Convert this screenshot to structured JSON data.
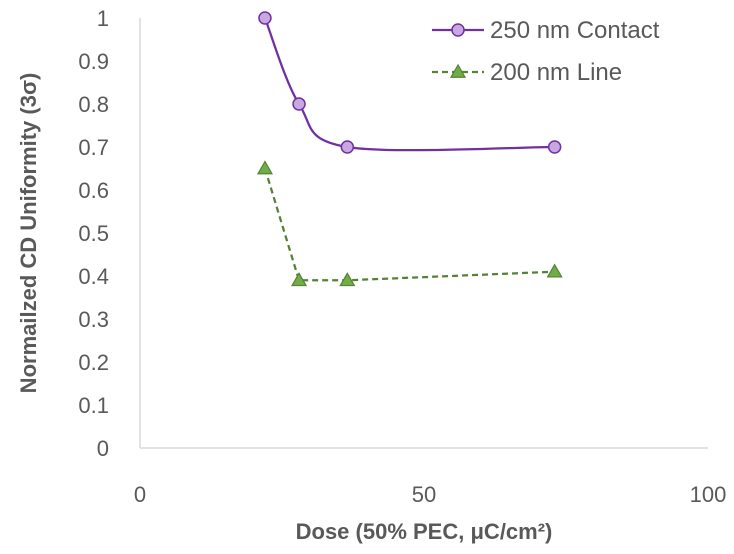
{
  "chart_data": {
    "type": "line",
    "xlabel": "Dose (50% PEC, μC/cm²)",
    "ylabel": "Normailzed CD Uniformity (3σ)",
    "xlim": [
      0,
      100
    ],
    "ylim": [
      0,
      1
    ],
    "x_ticks": [
      "0",
      "50",
      "100"
    ],
    "y_ticks": [
      "0",
      "0.1",
      "0.2",
      "0.3",
      "0.4",
      "0.5",
      "0.6",
      "0.7",
      "0.8",
      "0.9",
      "1"
    ],
    "grid": false,
    "legend_position": "top-right",
    "series": [
      {
        "name": "250 nm Contact",
        "color": "#7030a0",
        "marker": "circle",
        "line_style": "solid-smooth",
        "x": [
          22,
          28,
          36.5,
          73
        ],
        "y": [
          1.0,
          0.8,
          0.7,
          0.7
        ]
      },
      {
        "name": "200 nm Line",
        "color": "#548235",
        "marker": "triangle",
        "line_style": "dashed",
        "x": [
          22,
          28,
          36.5,
          73
        ],
        "y": [
          0.65,
          0.39,
          0.39,
          0.41
        ]
      }
    ]
  }
}
